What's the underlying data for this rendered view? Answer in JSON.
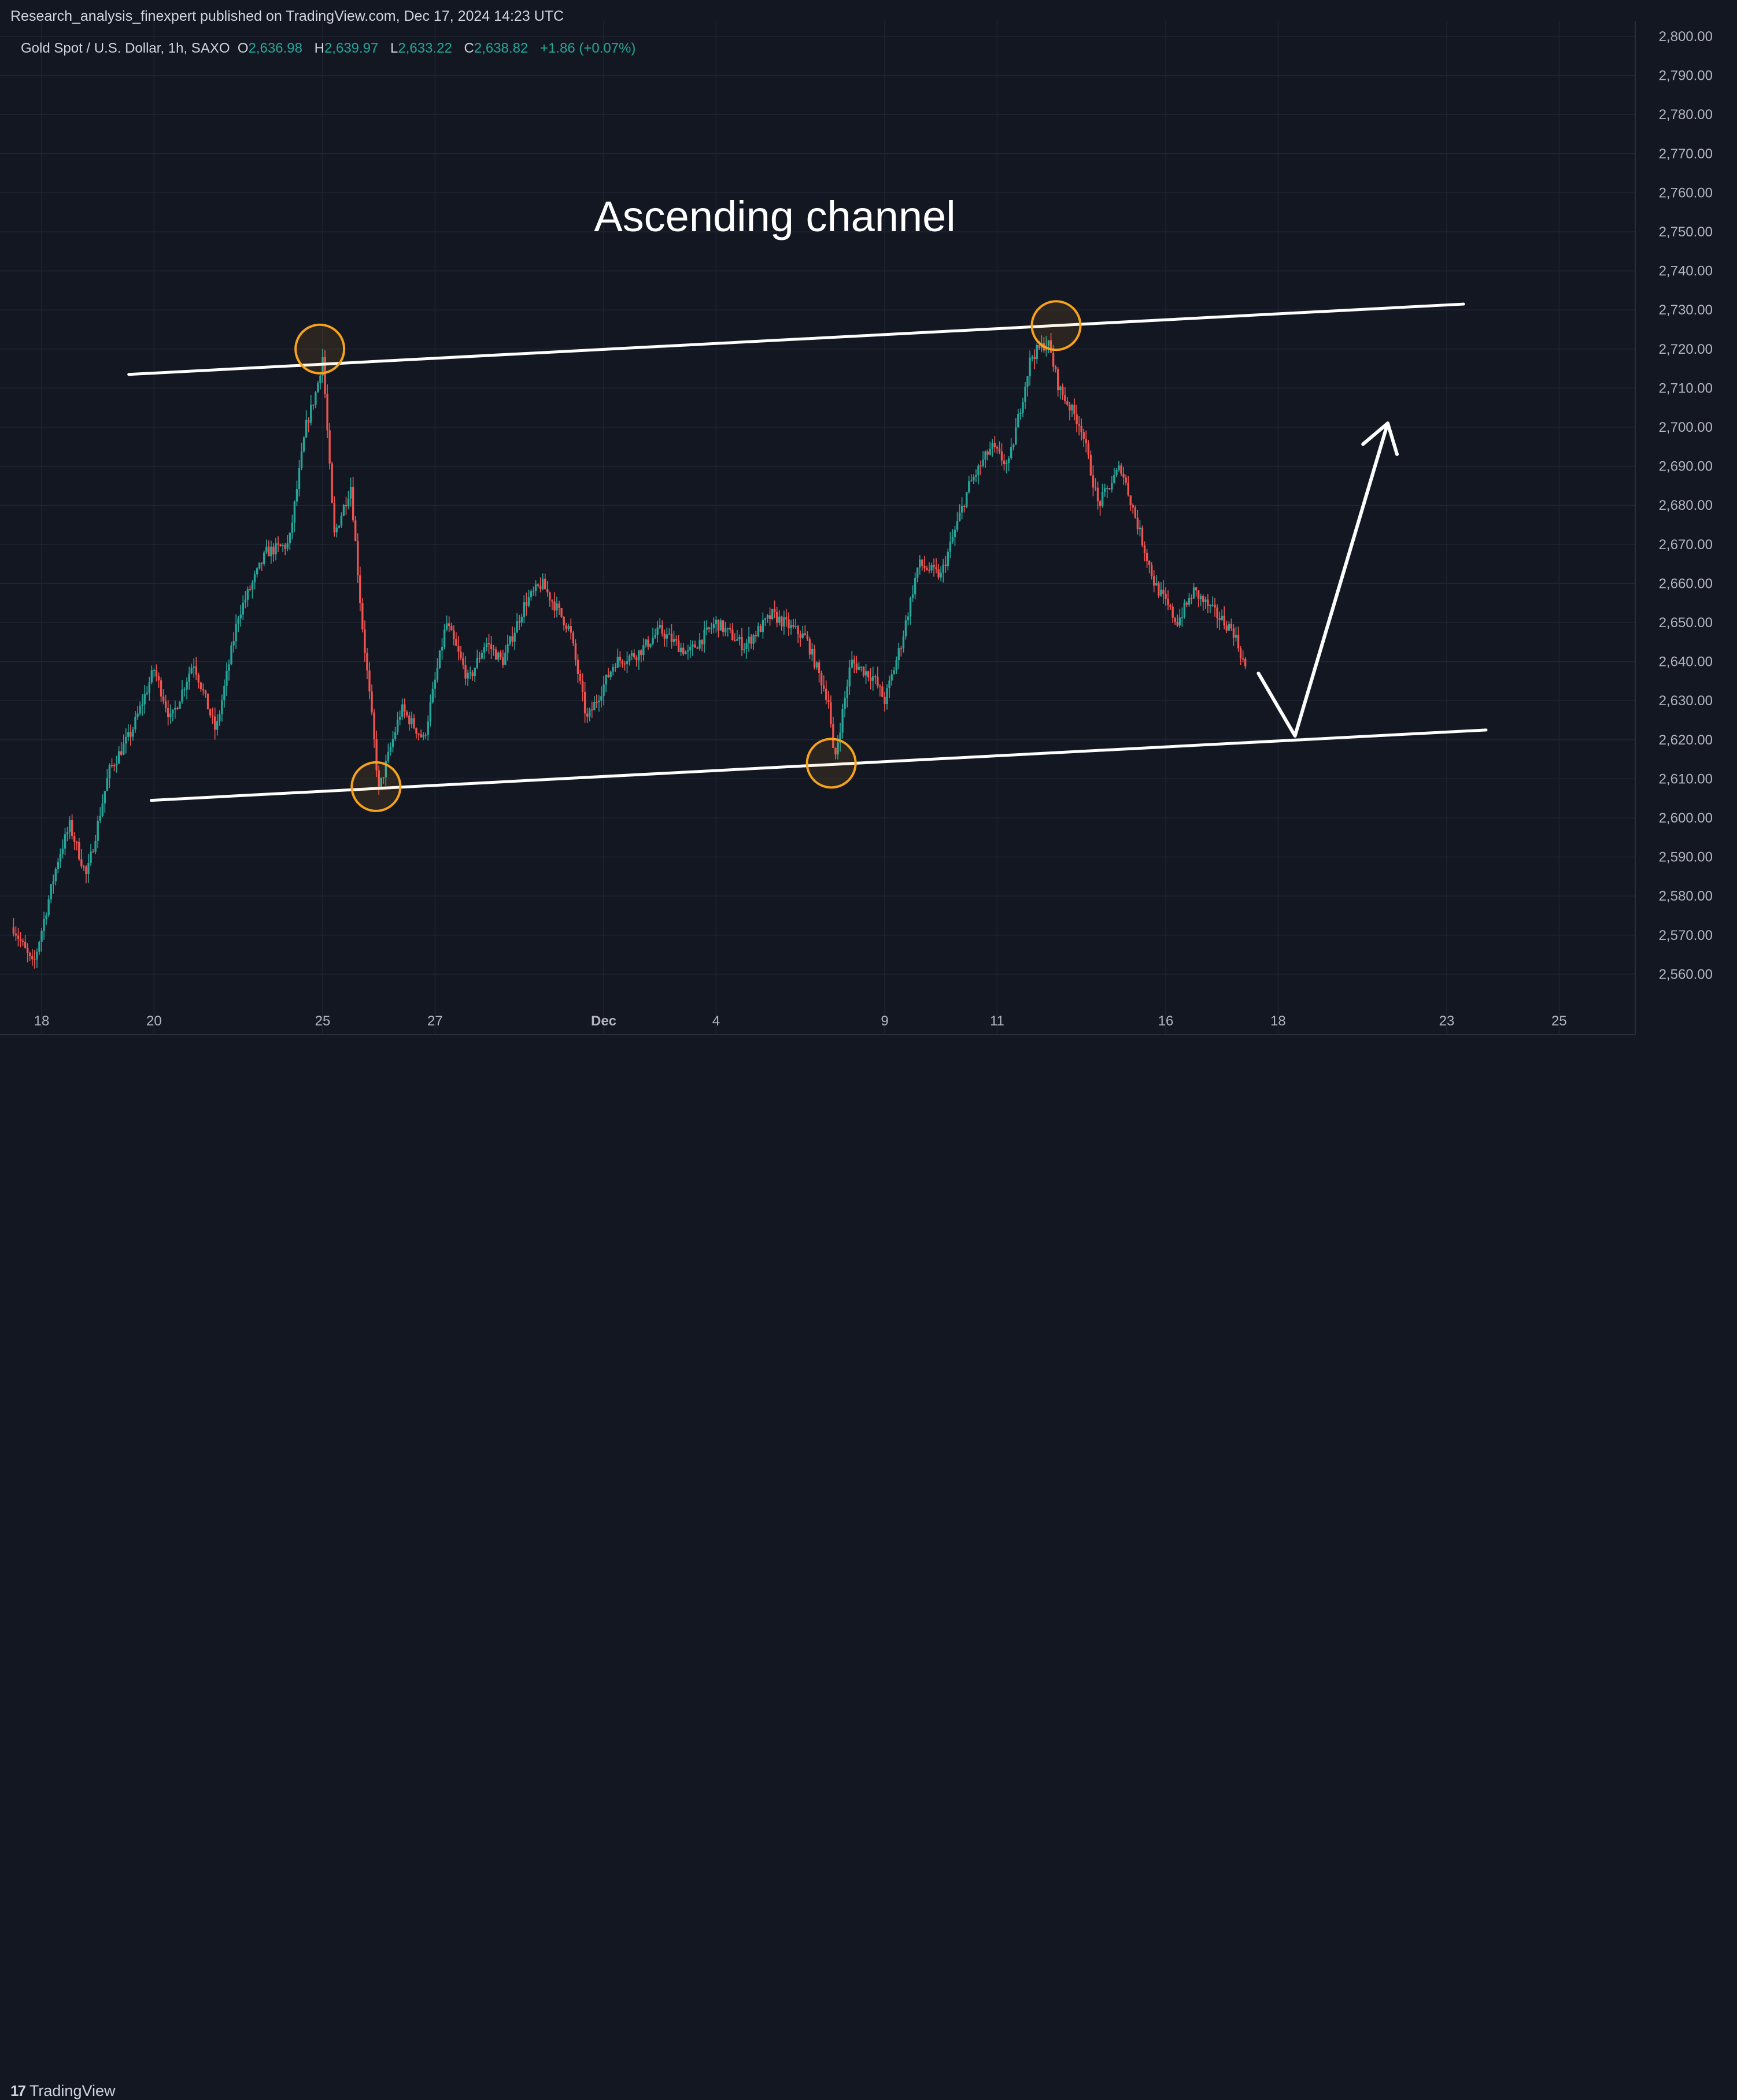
{
  "header": {
    "published": "Research_analysis_finexpert published on TradingView.com, Dec 17, 2024 14:23 UTC"
  },
  "legend": {
    "symbol": "Gold Spot / U.S. Dollar, 1h, SAXO",
    "o_label": "O",
    "o_value": "2,636.98",
    "h_label": "H",
    "h_value": "2,639.97",
    "l_label": "L",
    "l_value": "2,633.22",
    "c_label": "C",
    "c_value": "2,638.82",
    "change": "+1.86 (+0.07%)"
  },
  "footer": {
    "brand": "TradingView",
    "brand_icon": "tradingview-logo-icon"
  },
  "colors": {
    "background": "#131722",
    "grid": "#1f2433",
    "up": "#26a69a",
    "down": "#ef5350",
    "text": "#d1d4dc",
    "drawing": "#ffffff",
    "marker": "#f7a21b"
  },
  "chart_data": {
    "type": "candlestick",
    "title": "",
    "annotation": "Ascending channel",
    "ylim": [
      2555,
      2805
    ],
    "yticks": [
      2800,
      2790,
      2780,
      2770,
      2760,
      2750,
      2740,
      2730,
      2720,
      2710,
      2700,
      2690,
      2680,
      2670,
      2660,
      2650,
      2640,
      2630,
      2620,
      2610,
      2600,
      2590,
      2580,
      2570,
      2560
    ],
    "ytick_labels": [
      "2,800.00",
      "2,790.00",
      "2,780.00",
      "2,770.00",
      "2,760.00",
      "2,750.00",
      "2,740.00",
      "2,730.00",
      "2,720.00",
      "2,710.00",
      "2,700.00",
      "2,690.00",
      "2,680.00",
      "2,670.00",
      "2,660.00",
      "2,650.00",
      "2,640.00",
      "2,630.00",
      "2,620.00",
      "2,610.00",
      "2,600.00",
      "2,590.00",
      "2,580.00",
      "2,570.00",
      "2,560.00"
    ],
    "xrange": [
      0,
      28.25
    ],
    "xticks": [
      {
        "label": "18",
        "x": 0
      },
      {
        "label": "20",
        "x": 2
      },
      {
        "label": "25",
        "x": 5
      },
      {
        "label": "27",
        "x": 7
      },
      {
        "label": "Dec",
        "x": 10,
        "bold": true
      },
      {
        "label": "4",
        "x": 12
      },
      {
        "label": "9",
        "x": 15
      },
      {
        "label": "11",
        "x": 17
      },
      {
        "label": "16",
        "x": 20
      },
      {
        "label": "18",
        "x": 22
      },
      {
        "label": "23",
        "x": 25
      },
      {
        "label": "25",
        "x": 27
      }
    ],
    "price_anchors": [
      {
        "x": -0.5,
        "y": 2572
      },
      {
        "x": -0.15,
        "y": 2562
      },
      {
        "x": 0.3,
        "y": 2590
      },
      {
        "x": 0.5,
        "y": 2598
      },
      {
        "x": 0.8,
        "y": 2585
      },
      {
        "x": 1.2,
        "y": 2612
      },
      {
        "x": 1.6,
        "y": 2622
      },
      {
        "x": 2.0,
        "y": 2638
      },
      {
        "x": 2.3,
        "y": 2625
      },
      {
        "x": 2.7,
        "y": 2640
      },
      {
        "x": 3.1,
        "y": 2622
      },
      {
        "x": 3.5,
        "y": 2652
      },
      {
        "x": 4.0,
        "y": 2668
      },
      {
        "x": 4.4,
        "y": 2670
      },
      {
        "x": 4.7,
        "y": 2700
      },
      {
        "x": 4.9,
        "y": 2710
      },
      {
        "x": 5.0,
        "y": 2718
      },
      {
        "x": 5.2,
        "y": 2672
      },
      {
        "x": 5.5,
        "y": 2685
      },
      {
        "x": 5.7,
        "y": 2650
      },
      {
        "x": 5.9,
        "y": 2622
      },
      {
        "x": 6.0,
        "y": 2607
      },
      {
        "x": 6.4,
        "y": 2628
      },
      {
        "x": 6.8,
        "y": 2620
      },
      {
        "x": 7.2,
        "y": 2650
      },
      {
        "x": 7.6,
        "y": 2635
      },
      {
        "x": 7.9,
        "y": 2645
      },
      {
        "x": 8.2,
        "y": 2640
      },
      {
        "x": 8.6,
        "y": 2655
      },
      {
        "x": 8.9,
        "y": 2660
      },
      {
        "x": 9.4,
        "y": 2648
      },
      {
        "x": 9.7,
        "y": 2625
      },
      {
        "x": 10.2,
        "y": 2640
      },
      {
        "x": 10.6,
        "y": 2642
      },
      {
        "x": 11.0,
        "y": 2648
      },
      {
        "x": 11.5,
        "y": 2642
      },
      {
        "x": 12.0,
        "y": 2650
      },
      {
        "x": 12.5,
        "y": 2644
      },
      {
        "x": 13.0,
        "y": 2652
      },
      {
        "x": 13.6,
        "y": 2646
      },
      {
        "x": 14.0,
        "y": 2630
      },
      {
        "x": 14.1,
        "y": 2614
      },
      {
        "x": 14.4,
        "y": 2640
      },
      {
        "x": 14.8,
        "y": 2636
      },
      {
        "x": 15.0,
        "y": 2630
      },
      {
        "x": 15.3,
        "y": 2645
      },
      {
        "x": 15.6,
        "y": 2665
      },
      {
        "x": 16.0,
        "y": 2662
      },
      {
        "x": 16.5,
        "y": 2685
      },
      {
        "x": 16.9,
        "y": 2695
      },
      {
        "x": 17.2,
        "y": 2690
      },
      {
        "x": 17.6,
        "y": 2718
      },
      {
        "x": 17.9,
        "y": 2722
      },
      {
        "x": 18.1,
        "y": 2710
      },
      {
        "x": 18.5,
        "y": 2700
      },
      {
        "x": 18.8,
        "y": 2680
      },
      {
        "x": 19.2,
        "y": 2690
      },
      {
        "x": 19.5,
        "y": 2675
      },
      {
        "x": 19.8,
        "y": 2660
      },
      {
        "x": 20.2,
        "y": 2650
      },
      {
        "x": 20.5,
        "y": 2658
      },
      {
        "x": 20.9,
        "y": 2652
      },
      {
        "x": 21.2,
        "y": 2648
      },
      {
        "x": 21.45,
        "y": 2637
      }
    ],
    "channel": {
      "upper": [
        {
          "x": 1.55,
          "y": 2713.5
        },
        {
          "x": 25.3,
          "y": 2731.5
        }
      ],
      "lower": [
        {
          "x": 1.95,
          "y": 2604.5
        },
        {
          "x": 25.7,
          "y": 2622.5
        }
      ]
    },
    "markers": [
      {
        "x": 4.95,
        "y": 2720
      },
      {
        "x": 5.95,
        "y": 2608
      },
      {
        "x": 14.05,
        "y": 2614
      },
      {
        "x": 18.05,
        "y": 2726
      }
    ],
    "projection": [
      {
        "x": 21.65,
        "y": 2637
      },
      {
        "x": 22.3,
        "y": 2621
      },
      {
        "x": 23.95,
        "y": 2701
      }
    ]
  }
}
